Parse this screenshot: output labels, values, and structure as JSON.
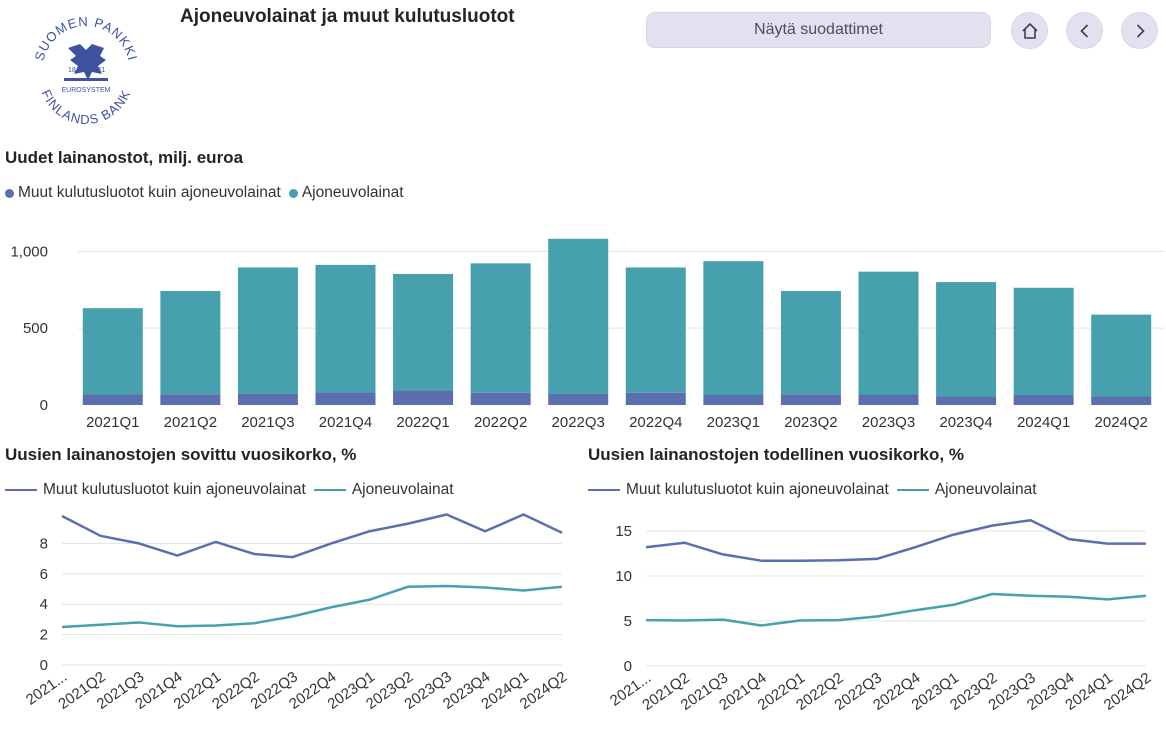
{
  "header": {
    "title": "Ajoneuvolainat ja muut kulutusluotot",
    "filter_button_label": "Näytä suodattimet",
    "logo_text": "SUOMEN PANKKI FINLANDS BANK EUROSYSTEM 1811",
    "logo_top": "SUOMEN PANKKI",
    "logo_bottom": "FINLANDS BANK",
    "logo_eurosystem": "EUROSYSTEM",
    "logo_year_left": "18",
    "logo_year_right": "11"
  },
  "icons": {
    "home": "home-icon",
    "back": "chevron-left-icon",
    "forward": "chevron-right-icon"
  },
  "colors": {
    "other": "#5b6fae",
    "vehicle": "#46a0ae",
    "grid": "#e3e3e3",
    "button_bg": "#e1e1f0"
  },
  "legends": {
    "other": "Muut kulutusluotot kuin ajoneuvolainat",
    "vehicle": "Ajoneuvolainat"
  },
  "chart_data": [
    {
      "type": "bar",
      "stacked": true,
      "title": "Uudet lainanostot, milj. euroa",
      "categories": [
        "2021Q1",
        "2021Q2",
        "2021Q3",
        "2021Q4",
        "2022Q1",
        "2022Q2",
        "2022Q3",
        "2022Q4",
        "2023Q1",
        "2023Q2",
        "2023Q3",
        "2023Q4",
        "2024Q1",
        "2024Q2"
      ],
      "series": [
        {
          "name": "Muut kulutusluotot kuin ajoneuvolainat",
          "values": [
            68,
            70,
            72,
            82,
            95,
            80,
            72,
            80,
            68,
            70,
            68,
            55,
            65,
            55
          ]
        },
        {
          "name": "Ajoneuvolainat",
          "values": [
            562,
            672,
            823,
            830,
            758,
            842,
            1010,
            815,
            868,
            672,
            800,
            745,
            698,
            533
          ]
        }
      ],
      "yticks": [
        "0",
        "500",
        "1,000"
      ],
      "ylim": [
        0,
        1100
      ],
      "grid": true,
      "legend": "top-left"
    },
    {
      "type": "line",
      "title": "Uusien lainanostojen sovittu vuosikorko, %",
      "categories": [
        "2021...",
        "2021Q2",
        "2021Q3",
        "2021Q4",
        "2022Q1",
        "2022Q2",
        "2022Q3",
        "2022Q4",
        "2023Q1",
        "2023Q2",
        "2023Q3",
        "2023Q4",
        "2024Q1",
        "2024Q2"
      ],
      "series": [
        {
          "name": "Muut kulutusluotot kuin ajoneuvolainat",
          "values": [
            9.8,
            8.5,
            8.0,
            7.2,
            8.1,
            7.3,
            7.1,
            8.0,
            8.8,
            9.3,
            9.9,
            8.8,
            9.9,
            8.7
          ]
        },
        {
          "name": "Ajoneuvolainat",
          "values": [
            2.5,
            2.65,
            2.8,
            2.55,
            2.6,
            2.75,
            3.2,
            3.8,
            4.3,
            5.15,
            5.2,
            5.1,
            4.9,
            5.15
          ]
        }
      ],
      "yticks": [
        "0",
        "2",
        "4",
        "6",
        "8"
      ],
      "ylim": [
        0,
        10
      ],
      "grid": true,
      "legend": "top-left"
    },
    {
      "type": "line",
      "title": "Uusien lainanostojen todellinen vuosikorko, %",
      "categories": [
        "2021...",
        "2021Q2",
        "2021Q3",
        "2021Q4",
        "2022Q1",
        "2022Q2",
        "2022Q3",
        "2022Q4",
        "2023Q1",
        "2023Q2",
        "2023Q3",
        "2023Q4",
        "2024Q1",
        "2024Q2"
      ],
      "series": [
        {
          "name": "Muut kulutusluotot kuin ajoneuvolainat",
          "values": [
            13.2,
            13.7,
            12.4,
            11.7,
            11.7,
            11.75,
            11.9,
            13.2,
            14.6,
            15.6,
            16.2,
            14.1,
            13.6,
            13.6
          ]
        },
        {
          "name": "Ajoneuvolainat",
          "values": [
            5.1,
            5.05,
            5.15,
            4.5,
            5.05,
            5.1,
            5.5,
            6.2,
            6.8,
            8.0,
            7.8,
            7.7,
            7.4,
            7.8
          ]
        }
      ],
      "yticks": [
        "0",
        "5",
        "10",
        "15"
      ],
      "ylim": [
        0,
        17
      ],
      "grid": true,
      "legend": "top-left"
    }
  ]
}
